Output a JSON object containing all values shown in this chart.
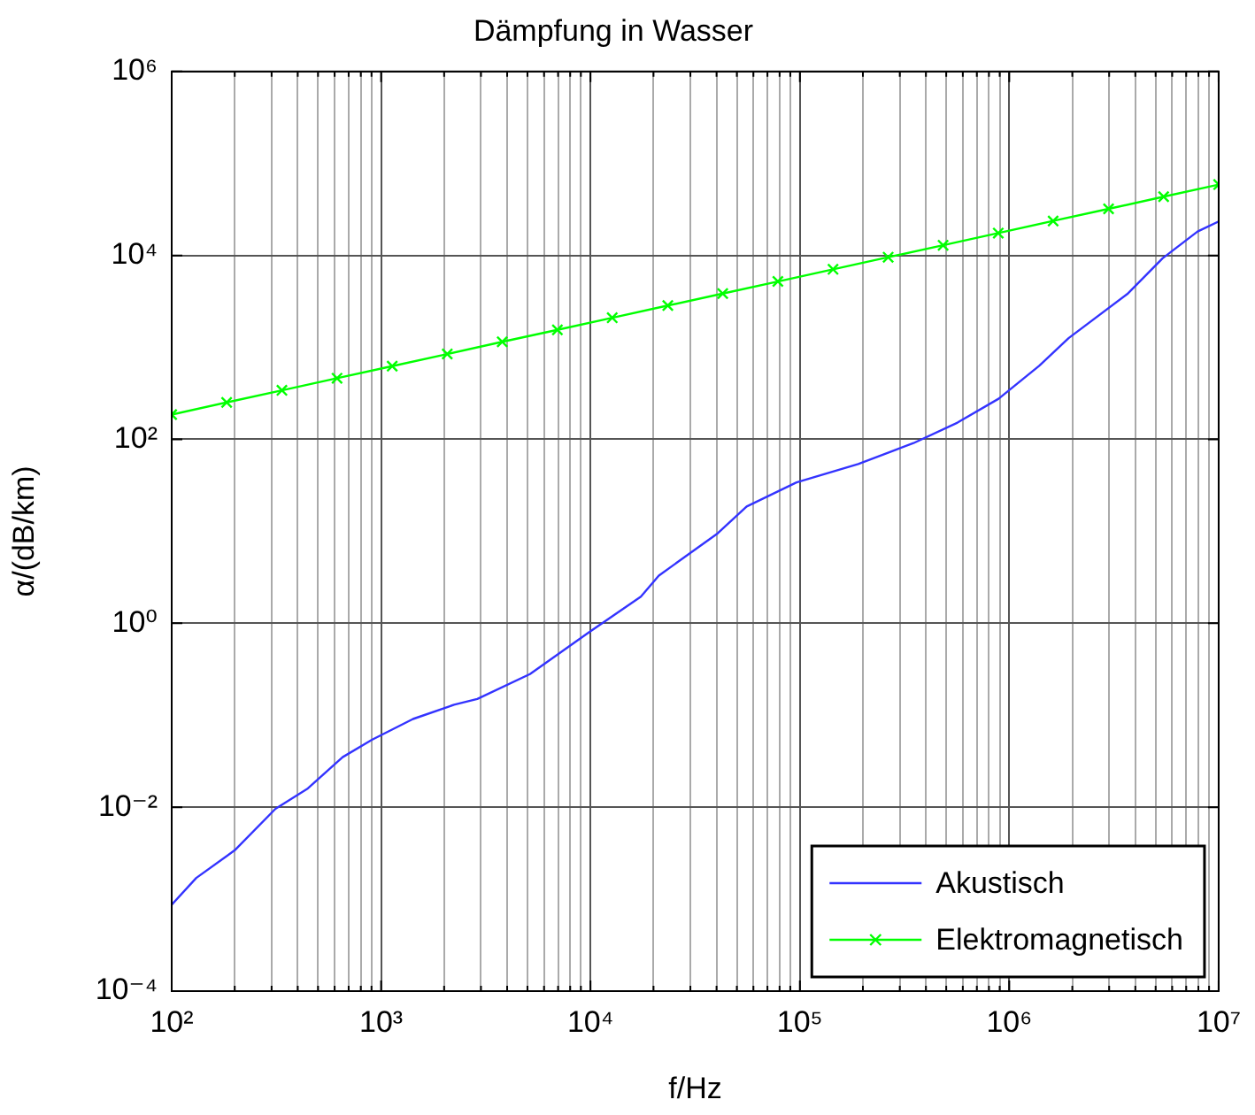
{
  "chart_data": {
    "type": "line",
    "title": "Dämpfung in Wasser",
    "xlabel": "f/Hz",
    "ylabel": "α/(dB/km)",
    "log": "xy",
    "grid": true,
    "legend": "bottom right",
    "line_style": "solid",
    "xlim": [
      100,
      10000000
    ],
    "ylim": [
      0.0001,
      1000000
    ],
    "xticks": [
      {
        "value": 100,
        "label": "10²"
      },
      {
        "value": 200,
        "label": null
      },
      {
        "value": 300,
        "label": null
      },
      {
        "value": 400,
        "label": null
      },
      {
        "value": 500,
        "label": null
      },
      {
        "value": 600,
        "label": null
      },
      {
        "value": 700,
        "label": null
      },
      {
        "value": 800,
        "label": null
      },
      {
        "value": 900,
        "label": null
      },
      {
        "value": 1000,
        "label": "10³"
      },
      {
        "value": 2000,
        "label": null
      },
      {
        "value": 3000,
        "label": null
      },
      {
        "value": 4000,
        "label": null
      },
      {
        "value": 5000,
        "label": null
      },
      {
        "value": 6000,
        "label": null
      },
      {
        "value": 7000,
        "label": null
      },
      {
        "value": 8000,
        "label": null
      },
      {
        "value": 9000,
        "label": null
      },
      {
        "value": 10000,
        "label": "10⁴"
      },
      {
        "value": 20000,
        "label": null
      },
      {
        "value": 30000,
        "label": null
      },
      {
        "value": 40000,
        "label": null
      },
      {
        "value": 50000,
        "label": null
      },
      {
        "value": 60000,
        "label": null
      },
      {
        "value": 70000,
        "label": null
      },
      {
        "value": 80000,
        "label": null
      },
      {
        "value": 90000,
        "label": null
      },
      {
        "value": 100000,
        "label": "10⁵"
      },
      {
        "value": 200000,
        "label": null
      },
      {
        "value": 300000,
        "label": null
      },
      {
        "value": 400000,
        "label": null
      },
      {
        "value": 500000,
        "label": null
      },
      {
        "value": 600000,
        "label": null
      },
      {
        "value": 700000,
        "label": null
      },
      {
        "value": 800000,
        "label": null
      },
      {
        "value": 900000,
        "label": null
      },
      {
        "value": 1000000,
        "label": "10⁶"
      },
      {
        "value": 2000000,
        "label": null
      },
      {
        "value": 3000000,
        "label": null
      },
      {
        "value": 4000000,
        "label": null
      },
      {
        "value": 5000000,
        "label": null
      },
      {
        "value": 6000000,
        "label": null
      },
      {
        "value": 7000000,
        "label": null
      },
      {
        "value": 8000000,
        "label": null
      },
      {
        "value": 9000000,
        "label": null
      },
      {
        "value": 10000000,
        "label": "10⁷"
      }
    ],
    "yticks": [
      {
        "value": 0.0001,
        "label": "10⁻⁴"
      },
      {
        "value": 0.01,
        "label": "10⁻²"
      },
      {
        "value": 1,
        "label": "10⁰"
      },
      {
        "value": 100,
        "label": "10²"
      },
      {
        "value": 10000,
        "label": "10⁴"
      },
      {
        "value": 1000000,
        "label": "10⁶"
      }
    ],
    "series": [
      {
        "name": "Akustisch",
        "color": "#3333ff",
        "marker": "none",
        "x": [
          100,
          131,
          200,
          313,
          447,
          655,
          904,
          1420,
          2230,
          2880,
          5140,
          9770,
          17400,
          21200,
          40500,
          55700,
          96400,
          190000,
          349000,
          566000,
          889000,
          1390000,
          1920000,
          3660000,
          5400000,
          7930000,
          10000000
        ],
        "values": [
          0.00087,
          0.0017,
          0.0034,
          0.0096,
          0.016,
          0.035,
          0.054,
          0.091,
          0.13,
          0.15,
          0.28,
          0.79,
          1.95,
          3.3,
          9.5,
          18.6,
          34,
          54,
          91,
          152,
          276,
          630,
          1260,
          3800,
          9300,
          18200,
          23400
        ]
      },
      {
        "name": "Elektromagnetisch",
        "color": "#00ff00",
        "marker": "cross",
        "x": [
          100,
          183,
          336,
          616,
          1130,
          2070,
          3790,
          6950,
          12700,
          23400,
          42800,
          78500,
          144000,
          264000,
          483000,
          886000,
          1620000,
          2980000,
          5460000,
          10000000
        ],
        "values": [
          186,
          252,
          341,
          462,
          625,
          847,
          1150,
          1550,
          2100,
          2850,
          3850,
          5210,
          7060,
          9560,
          12900,
          17500,
          23700,
          32100,
          43500,
          58900
        ]
      }
    ]
  }
}
